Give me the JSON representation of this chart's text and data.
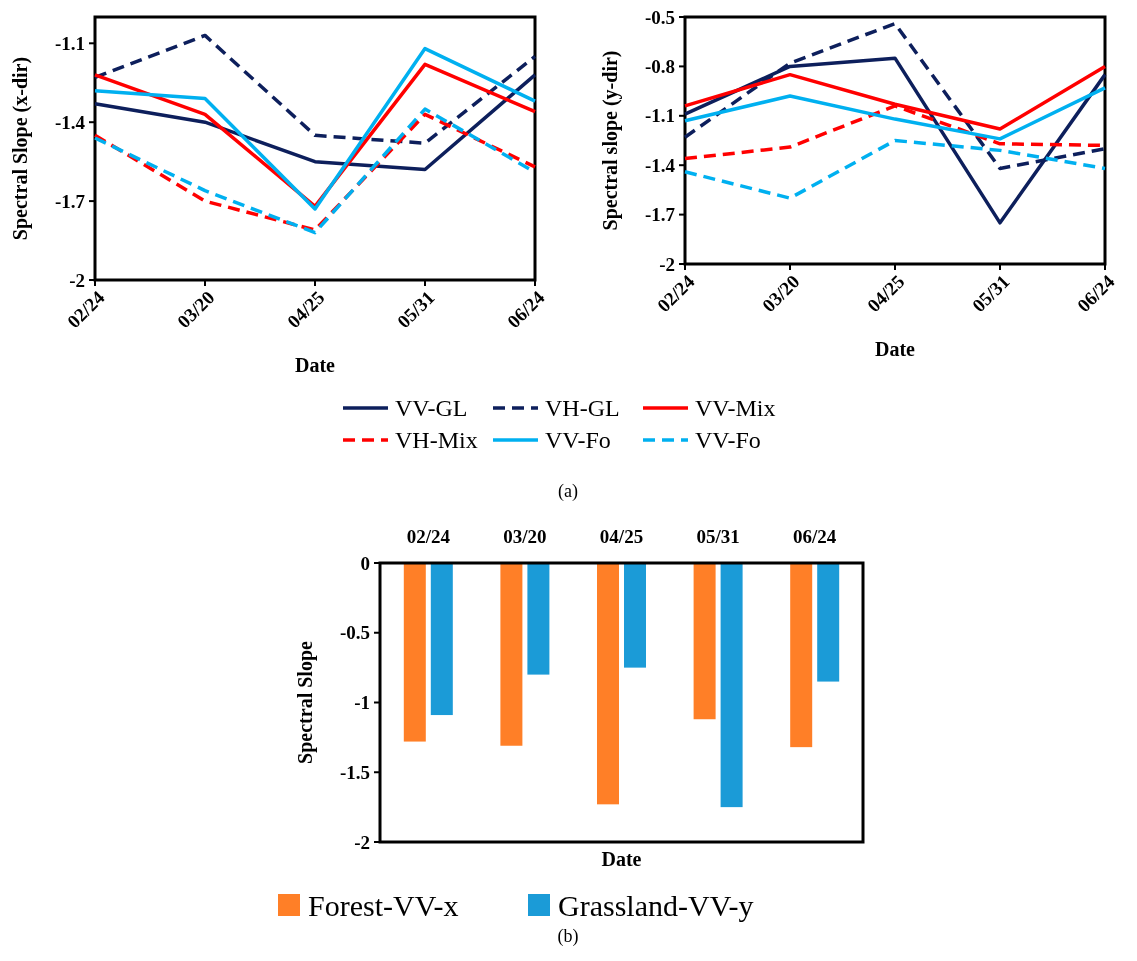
{
  "chart_data": [
    {
      "type": "line",
      "xlabel": "Date",
      "ylabel": "Spectral Slope (x-dir)",
      "categories": [
        "02/24",
        "03/20",
        "04/25",
        "05/31",
        "06/24"
      ],
      "ylim": [
        -2,
        -1
      ],
      "yticks": [
        -2,
        -1.7,
        -1.4,
        -1.1
      ],
      "legend": "bottom",
      "annotations": [
        "(a)"
      ],
      "series": [
        {
          "name": "VV-GL",
          "color": "#0d1f5c",
          "line_style": "solid",
          "values": [
            -1.33,
            -1.4,
            -1.55,
            -1.58,
            -1.22
          ]
        },
        {
          "name": "VH-GL",
          "color": "#0d1f5c",
          "line_style": "dashed",
          "values": [
            -1.23,
            -1.07,
            -1.45,
            -1.48,
            -1.15
          ]
        },
        {
          "name": "VV-Mix",
          "color": "#ff0000",
          "line_style": "solid",
          "values": [
            -1.22,
            -1.37,
            -1.72,
            -1.18,
            -1.36
          ]
        },
        {
          "name": "VH-Mix",
          "color": "#ff0000",
          "line_style": "dashed",
          "values": [
            -1.45,
            -1.7,
            -1.81,
            -1.37,
            -1.57
          ]
        },
        {
          "name": "VV-Fo",
          "color": "#00b0f0",
          "line_style": "solid",
          "values": [
            -1.28,
            -1.31,
            -1.73,
            -1.12,
            -1.32
          ]
        },
        {
          "name": "VV-Fo",
          "color": "#00b0f0",
          "line_style": "dashed",
          "values": [
            -1.46,
            -1.66,
            -1.82,
            -1.35,
            -1.59
          ]
        }
      ]
    },
    {
      "type": "line",
      "xlabel": "Date",
      "ylabel": "Spectral slope (y-dir)",
      "categories": [
        "02/24",
        "03/20",
        "04/25",
        "05/31",
        "06/24"
      ],
      "ylim": [
        -2,
        -0.5
      ],
      "yticks": [
        -2,
        -1.7,
        -1.4,
        -1.1,
        -0.8,
        -0.5
      ],
      "series": [
        {
          "color": "#0d1f5c",
          "line_style": "solid",
          "values": [
            -1.09,
            -0.8,
            -0.75,
            -1.75,
            -0.85
          ]
        },
        {
          "color": "#0d1f5c",
          "line_style": "dashed",
          "values": [
            -1.23,
            -0.78,
            -0.54,
            -1.42,
            -1.3
          ]
        },
        {
          "color": "#ff0000",
          "line_style": "solid",
          "values": [
            -1.04,
            -0.85,
            -1.03,
            -1.18,
            -0.8
          ]
        },
        {
          "color": "#ff0000",
          "line_style": "dashed",
          "values": [
            -1.36,
            -1.29,
            -1.04,
            -1.27,
            -1.28
          ]
        },
        {
          "color": "#00b0f0",
          "line_style": "solid",
          "values": [
            -1.13,
            -0.98,
            -1.12,
            -1.24,
            -0.93
          ]
        },
        {
          "color": "#00b0f0",
          "line_style": "dashed",
          "values": [
            -1.44,
            -1.6,
            -1.25,
            -1.31,
            -1.42
          ]
        }
      ]
    },
    {
      "type": "bar",
      "xlabel": "Date",
      "ylabel": "Spectral Slope",
      "categories": [
        "02/24",
        "03/20",
        "04/25",
        "05/31",
        "06/24"
      ],
      "ylim": [
        -2,
        0
      ],
      "yticks": [
        -2,
        -1.5,
        -1,
        -0.5,
        0
      ],
      "legend": "bottom",
      "annotations": [
        "(b)"
      ],
      "series": [
        {
          "name": "Forest-VV-x",
          "color": "#ff7f27",
          "values": [
            -1.28,
            -1.31,
            -1.73,
            -1.12,
            -1.32
          ]
        },
        {
          "name": "Grassland-VV-y",
          "color": "#1b9bd7",
          "values": [
            -1.09,
            -0.8,
            -0.75,
            -1.75,
            -0.85
          ]
        }
      ]
    }
  ]
}
